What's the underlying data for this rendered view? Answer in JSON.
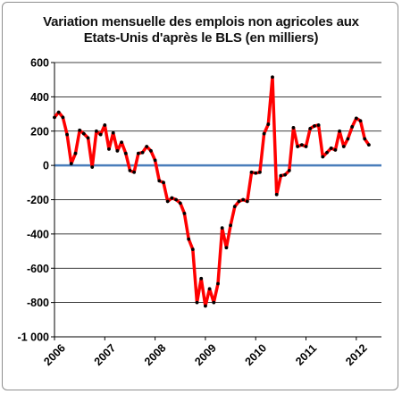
{
  "chart_data": {
    "type": "line",
    "title_line1": "Variation mensuelle des emplois non agricoles aux",
    "title_line2": "Etats-Unis d'après le BLS (en milliers)",
    "xlabel": "",
    "ylabel": "",
    "ylim": [
      -1000,
      600
    ],
    "yticks": [
      -1000,
      -800,
      -600,
      -400,
      -200,
      0,
      200,
      400,
      600
    ],
    "ytick_labels": [
      "-1 000",
      "-800",
      "-600",
      "-400",
      "-200",
      "0",
      "200",
      "400",
      "600"
    ],
    "xlim": [
      2006.0,
      2012.5
    ],
    "xticks": [
      "2006",
      "2007",
      "2008",
      "2009",
      "2010",
      "2011",
      "2012"
    ],
    "grid": "horizontal",
    "legend": "none",
    "colors": {
      "series": "#ff0000",
      "marker": "#000000",
      "zero_line": "#4a7ebb",
      "grid": "#000000"
    },
    "series": [
      {
        "x": [
          2006.0,
          2006.083,
          2006.167,
          2006.25,
          2006.333,
          2006.417,
          2006.5,
          2006.583,
          2006.667,
          2006.75,
          2006.833,
          2006.917,
          2007.0,
          2007.083,
          2007.167,
          2007.25,
          2007.333,
          2007.417,
          2007.5,
          2007.583,
          2007.667,
          2007.75,
          2007.833,
          2007.917,
          2008.0,
          2008.083,
          2008.167,
          2008.25,
          2008.333,
          2008.417,
          2008.5,
          2008.583,
          2008.667,
          2008.75,
          2008.833,
          2008.917,
          2009.0,
          2009.083,
          2009.167,
          2009.25,
          2009.333,
          2009.417,
          2009.5,
          2009.583,
          2009.667,
          2009.75,
          2009.833,
          2009.917,
          2010.0,
          2010.083,
          2010.167,
          2010.25,
          2010.333,
          2010.417,
          2010.5,
          2010.583,
          2010.667,
          2010.75,
          2010.833,
          2010.917,
          2011.0,
          2011.083,
          2011.167,
          2011.25,
          2011.333,
          2011.417,
          2011.5,
          2011.583,
          2011.667,
          2011.75,
          2011.833,
          2011.917,
          2012.0,
          2012.083,
          2012.167,
          2012.25
        ],
        "values": [
          280,
          310,
          280,
          180,
          10,
          70,
          205,
          185,
          160,
          -10,
          200,
          180,
          235,
          95,
          190,
          85,
          135,
          70,
          -30,
          -40,
          70,
          75,
          110,
          85,
          30,
          -90,
          -100,
          -210,
          -190,
          -200,
          -220,
          -280,
          -430,
          -490,
          -800,
          -660,
          -820,
          -720,
          -800,
          -690,
          -365,
          -480,
          -350,
          -240,
          -210,
          -200,
          -210,
          -40,
          -45,
          -40,
          185,
          240,
          515,
          -170,
          -60,
          -55,
          -30,
          220,
          110,
          120,
          110,
          215,
          230,
          235,
          50,
          75,
          100,
          90,
          200,
          110,
          155,
          225,
          275,
          260,
          155,
          120
        ]
      }
    ]
  }
}
